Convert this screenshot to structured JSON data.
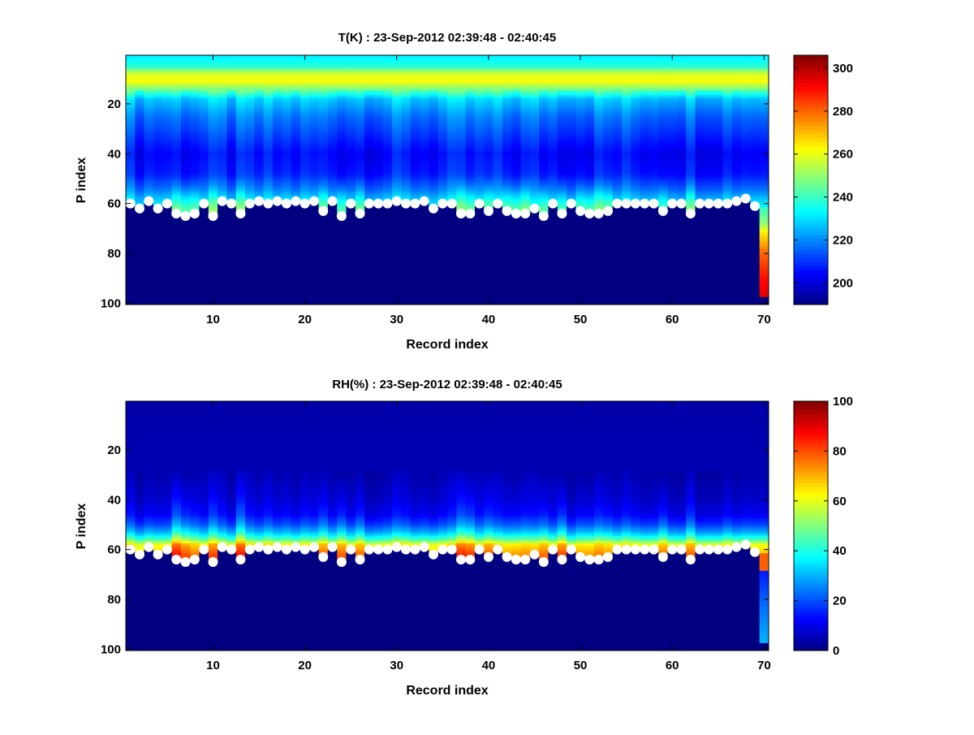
{
  "chart_data": [
    {
      "type": "heatmap",
      "title": "T(K) : 23-Sep-2012 02:39:48 - 02:40:45",
      "xlabel": "Record index",
      "ylabel": "P index",
      "xlim": [
        0.5,
        70.5
      ],
      "ylim": [
        0.5,
        100.5
      ],
      "y_reversed": true,
      "xticks": [
        10,
        20,
        30,
        40,
        50,
        60,
        70
      ],
      "yticks": [
        20,
        40,
        60,
        80,
        100
      ],
      "colorbar": {
        "range": [
          190,
          306
        ],
        "ticks": [
          200,
          220,
          240,
          260,
          280,
          300
        ]
      },
      "mean_profile": {
        "p_index": [
          1,
          5,
          8,
          11,
          14,
          18,
          25,
          32,
          40,
          48,
          54,
          58,
          62
        ],
        "value": [
          232,
          238,
          258,
          262,
          248,
          228,
          218,
          212,
          205,
          208,
          218,
          228,
          236
        ]
      },
      "fill_value": 190,
      "last_record_below_surface": {
        "p_index": [
          62,
          68,
          72,
          80,
          90,
          97
        ],
        "value": [
          240,
          250,
          265,
          280,
          290,
          295
        ]
      },
      "surface_markers": {
        "records": [
          1,
          2,
          3,
          4,
          5,
          6,
          7,
          8,
          9,
          10,
          11,
          12,
          13,
          14,
          15,
          16,
          17,
          18,
          19,
          20,
          21,
          22,
          23,
          24,
          25,
          26,
          27,
          28,
          29,
          30,
          31,
          32,
          33,
          34,
          35,
          36,
          37,
          38,
          39,
          40,
          41,
          42,
          43,
          44,
          45,
          46,
          47,
          48,
          49,
          50,
          51,
          52,
          53,
          54,
          55,
          56,
          57,
          58,
          59,
          60,
          61,
          62,
          63,
          64,
          65,
          66,
          67,
          68,
          69
        ],
        "p_index": [
          60,
          62,
          59,
          62,
          60,
          64,
          65,
          64,
          60,
          65,
          59,
          60,
          64,
          60,
          59,
          60,
          59,
          60,
          59,
          60,
          59,
          63,
          59,
          65,
          60,
          64,
          60,
          60,
          60,
          59,
          60,
          60,
          59,
          62,
          60,
          60,
          64,
          64,
          60,
          63,
          60,
          63,
          64,
          64,
          62,
          65,
          60,
          64,
          60,
          63,
          64,
          64,
          63,
          60,
          60,
          60,
          60,
          60,
          63,
          60,
          60,
          64,
          60,
          60,
          60,
          60,
          59,
          58,
          61
        ]
      }
    },
    {
      "type": "heatmap",
      "title": "RH(%) : 23-Sep-2012 02:39:48 - 02:40:45",
      "xlabel": "Record index",
      "ylabel": "P index",
      "xlim": [
        0.5,
        70.5
      ],
      "ylim": [
        0.5,
        100.5
      ],
      "y_reversed": true,
      "xticks": [
        10,
        20,
        30,
        40,
        50,
        60,
        70
      ],
      "yticks": [
        20,
        40,
        60,
        80,
        100
      ],
      "colorbar": {
        "range": [
          0,
          100
        ],
        "ticks": [
          0,
          20,
          40,
          60,
          80,
          100
        ]
      },
      "mean_profile": {
        "p_index": [
          1,
          30,
          40,
          46,
          50,
          53,
          56,
          58,
          62
        ],
        "value": [
          4,
          5,
          8,
          12,
          20,
          30,
          45,
          62,
          70
        ]
      },
      "fill_value": 0,
      "last_record_below_surface": {
        "p_index": [
          60,
          68,
          69,
          80,
          97
        ],
        "value": [
          78,
          78,
          15,
          22,
          30
        ]
      },
      "surface_markers": {
        "same_as": "T"
      }
    }
  ]
}
